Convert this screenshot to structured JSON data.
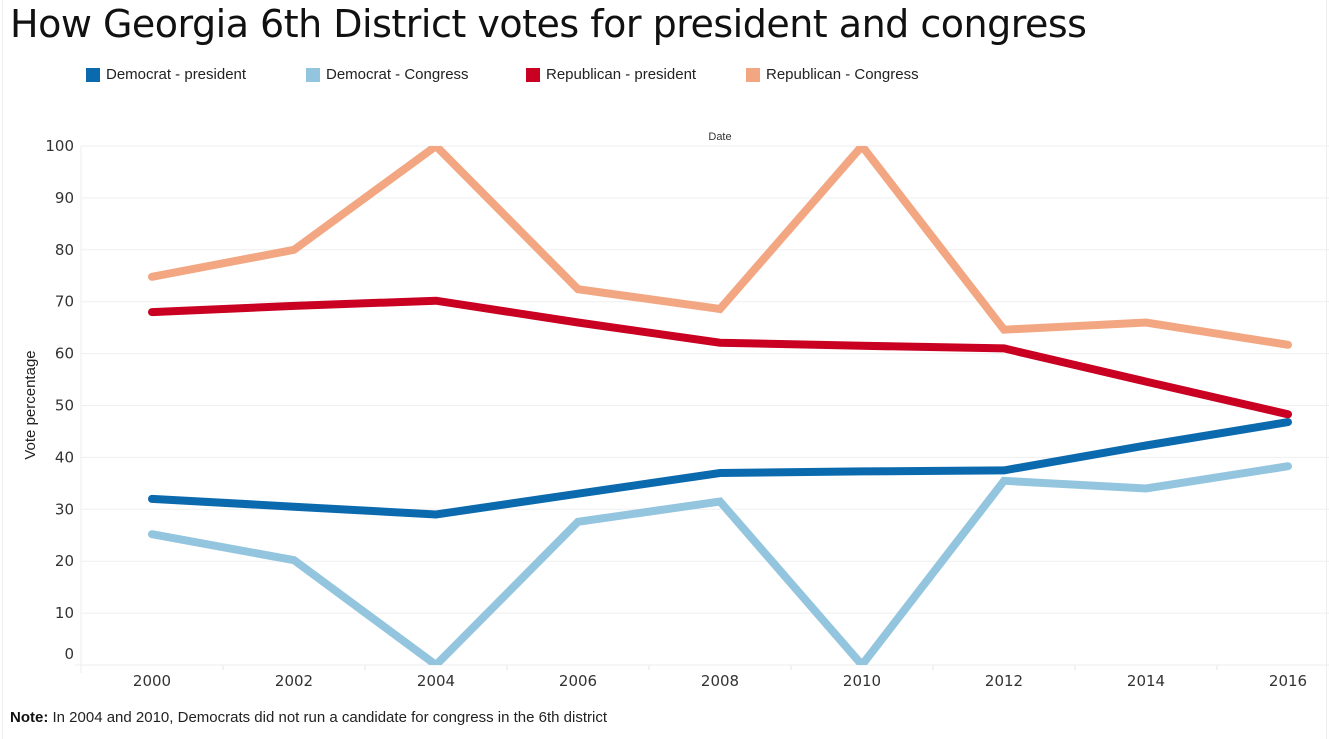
{
  "title": "How Georgia 6th District votes for president and congress",
  "note": {
    "prefix": "Note:",
    "text": " In 2004 and 2010, Democrats did not run a candidate for congress in the 6th district"
  },
  "chart_data": {
    "type": "line",
    "title": "How Georgia 6th District votes for president and congress",
    "xlabel": "Date",
    "ylabel": "Vote percentage",
    "x": [
      2000,
      2002,
      2004,
      2006,
      2008,
      2010,
      2012,
      2014,
      2016
    ],
    "x_tick_labels": [
      "2000",
      "2002",
      "2004",
      "2006",
      "2008",
      "2010",
      "2012",
      "2014",
      "2016"
    ],
    "y_ticks": [
      0,
      10,
      20,
      30,
      40,
      50,
      60,
      70,
      80,
      90,
      100
    ],
    "ylim": [
      0,
      100
    ],
    "grid": true,
    "legend_position": "top-left",
    "series": [
      {
        "name": "Democrat - president",
        "color": "#0b6aae",
        "values": [
          32.0,
          30.5,
          29.0,
          33.0,
          37.0,
          37.3,
          37.5,
          42.3,
          46.8
        ]
      },
      {
        "name": "Democrat - Congress",
        "color": "#94c5df",
        "values": [
          25.2,
          20.2,
          0,
          27.6,
          31.5,
          null,
          35.5,
          34.0,
          38.3
        ]
      },
      {
        "name": "Republican - president",
        "color": "#c90022",
        "values": [
          68.0,
          69.2,
          70.2,
          66.0,
          62.1,
          61.5,
          61.0,
          54.6,
          48.3
        ]
      },
      {
        "name": "Republican - Congress",
        "color": "#f2a681",
        "values": [
          74.8,
          80.0,
          100,
          72.4,
          68.6,
          100,
          64.6,
          66.0,
          61.7
        ]
      }
    ],
    "series_points_2010_dem_congress": 0
  }
}
